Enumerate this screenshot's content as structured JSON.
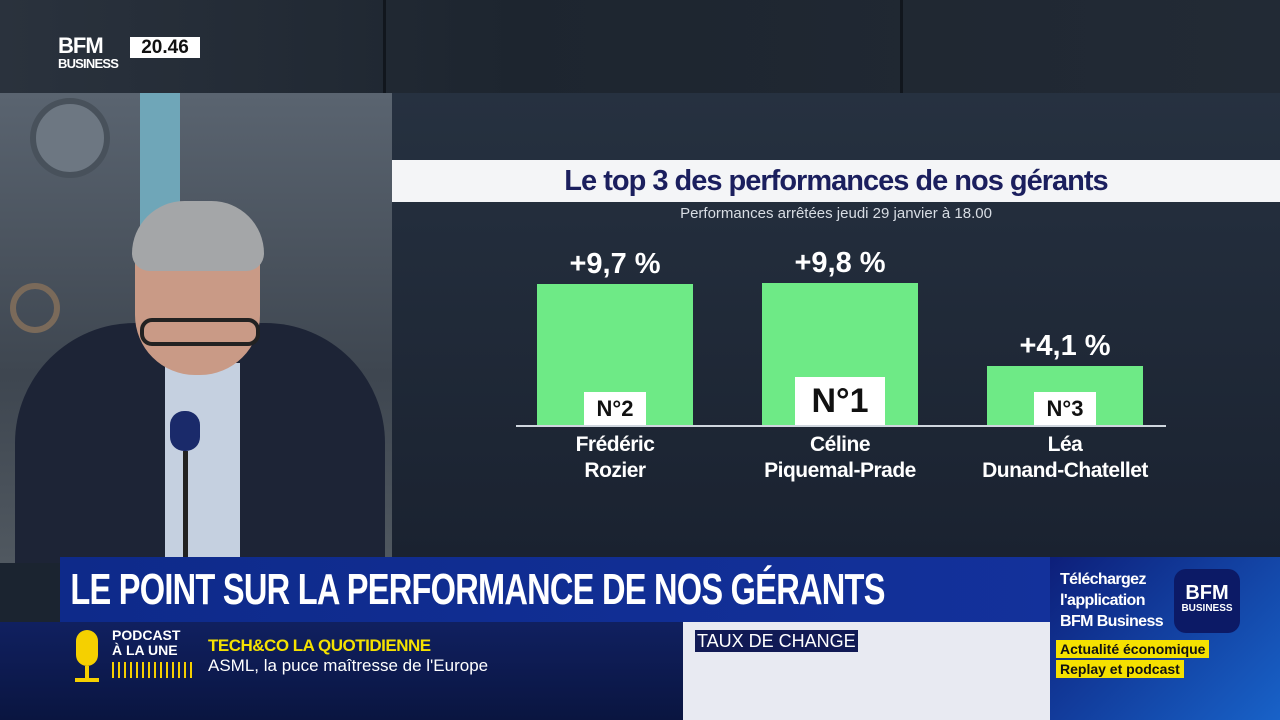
{
  "channel": {
    "logo_top": "BFM",
    "logo_bottom": "BUSINESS",
    "time": "20.46"
  },
  "chart_data": {
    "type": "bar",
    "title": "Le top 3 des performances de nos gérants",
    "subtitle": "Performances arrêtées jeudi 29 janvier à 18.00",
    "categories": [
      "Frédéric Rozier",
      "Céline Piquemal-Prade",
      "Léa Dunand-Chatellet"
    ],
    "category_lines": [
      [
        "Frédéric",
        "Rozier"
      ],
      [
        "Céline",
        "Piquemal-Prade"
      ],
      [
        "Léa",
        "Dunand-Chatellet"
      ]
    ],
    "values": [
      9.7,
      9.8,
      4.1
    ],
    "value_labels": [
      "+9,7 %",
      "+9,8 %",
      "+4,1 %"
    ],
    "ranks": [
      "N°2",
      "N°1",
      "N°3"
    ],
    "unit": "%",
    "bar_color": "#6eea86",
    "grid": false
  },
  "headline": "LE POINT SUR LA PERFORMANCE DE NOS GÉRANTS",
  "ticker": {
    "podcast_line1": "PODCAST",
    "podcast_line2": "À LA UNE",
    "show": "TECH&CO LA QUOTIDIENNE",
    "topic": "ASML, la puce maîtresse de l'Europe",
    "rates_title": "TAUX DE CHANGE"
  },
  "promo": {
    "line1": "Téléchargez",
    "line2": "l'application",
    "line3": "BFM Business",
    "tag1": "Actualité économique",
    "tag2": "Replay et podcast",
    "app_logo_top": "BFM",
    "app_logo_bottom": "BUSINESS"
  },
  "colors": {
    "accent": "#13319b",
    "highlight": "#f5e100",
    "bar": "#6eea86"
  }
}
